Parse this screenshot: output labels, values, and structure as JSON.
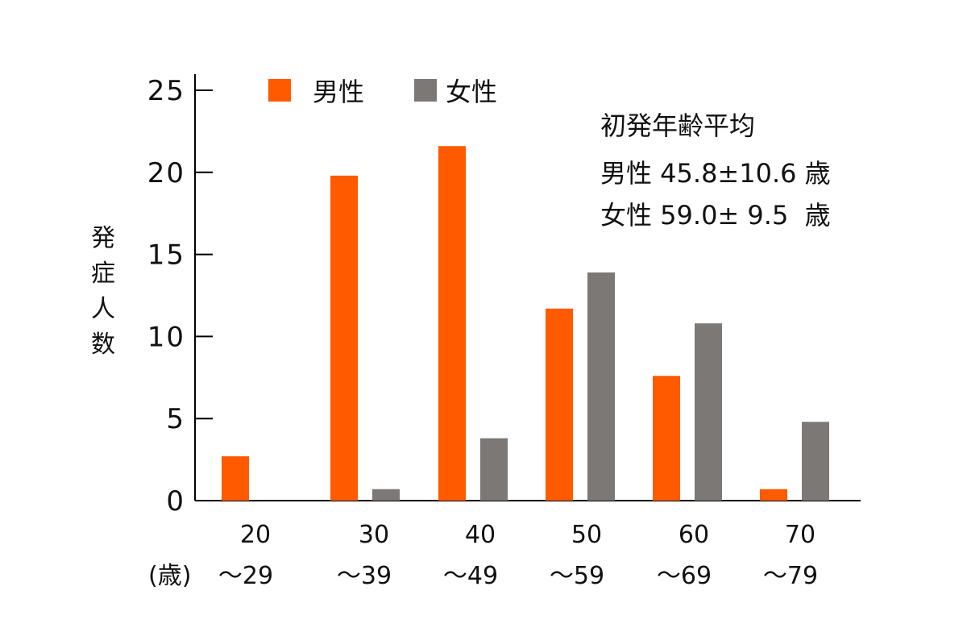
{
  "chart_data": {
    "type": "bar",
    "categories_top": [
      "20",
      "30",
      "40",
      "50",
      "60",
      "70"
    ],
    "categories_bottom": [
      "～29",
      "～39",
      "～49",
      "～59",
      "～69",
      "～79"
    ],
    "x_unit": "(歳)",
    "ylabel": "発症人数",
    "ylim": [
      0,
      25
    ],
    "yticks": [
      0,
      5,
      10,
      15,
      20,
      25
    ],
    "series": [
      {
        "name": "男性",
        "color": "#ff5a00",
        "values": [
          2.7,
          19.8,
          21.6,
          11.7,
          7.6,
          0.7
        ]
      },
      {
        "name": "女性",
        "color": "#7b7875",
        "values": [
          0,
          0.7,
          3.8,
          13.9,
          10.8,
          4.8
        ]
      }
    ],
    "annotation": {
      "title": "初発年齢平均",
      "lines": [
        "男性 45.8±10.6 歳",
        "女性 59.0± 9.5  歳"
      ]
    },
    "axis_color": "#000000"
  }
}
